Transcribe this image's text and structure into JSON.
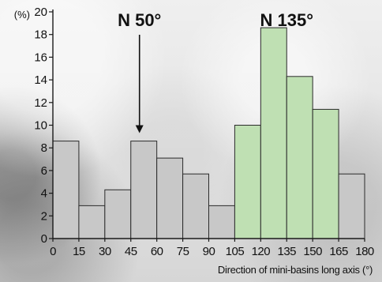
{
  "chart_data": {
    "type": "bar",
    "subtype": "histogram",
    "bin_edges": [
      0,
      15,
      30,
      45,
      60,
      75,
      90,
      105,
      120,
      135,
      150,
      165,
      180
    ],
    "values": [
      8.6,
      2.9,
      4.3,
      8.6,
      7.1,
      5.7,
      2.9,
      10.0,
      18.6,
      14.3,
      11.4,
      5.7
    ],
    "bar_colors": [
      "#c8c8c8",
      "#c8c8c8",
      "#c8c8c8",
      "#c8c8c8",
      "#c8c8c8",
      "#c8c8c8",
      "#c8c8c8",
      "#bfe0b3",
      "#bfe0b3",
      "#bfe0b3",
      "#bfe0b3",
      "#c8c8c8"
    ],
    "ylabel": "(%)",
    "xlabel": "Direction of mini-basins long axis (°)",
    "ylim": [
      0,
      20
    ],
    "yticks": [
      0,
      2,
      4,
      6,
      8,
      10,
      12,
      14,
      16,
      18,
      20
    ],
    "xlim": [
      0,
      180
    ],
    "xticks": [
      0,
      15,
      30,
      45,
      60,
      75,
      90,
      105,
      120,
      135,
      150,
      165,
      180
    ],
    "annotations": [
      {
        "text": "N 50°",
        "x": 50,
        "arrow_to_y": 9.3
      },
      {
        "text": "N 135°",
        "x": 135
      }
    ],
    "grid": false,
    "legend": "none"
  }
}
